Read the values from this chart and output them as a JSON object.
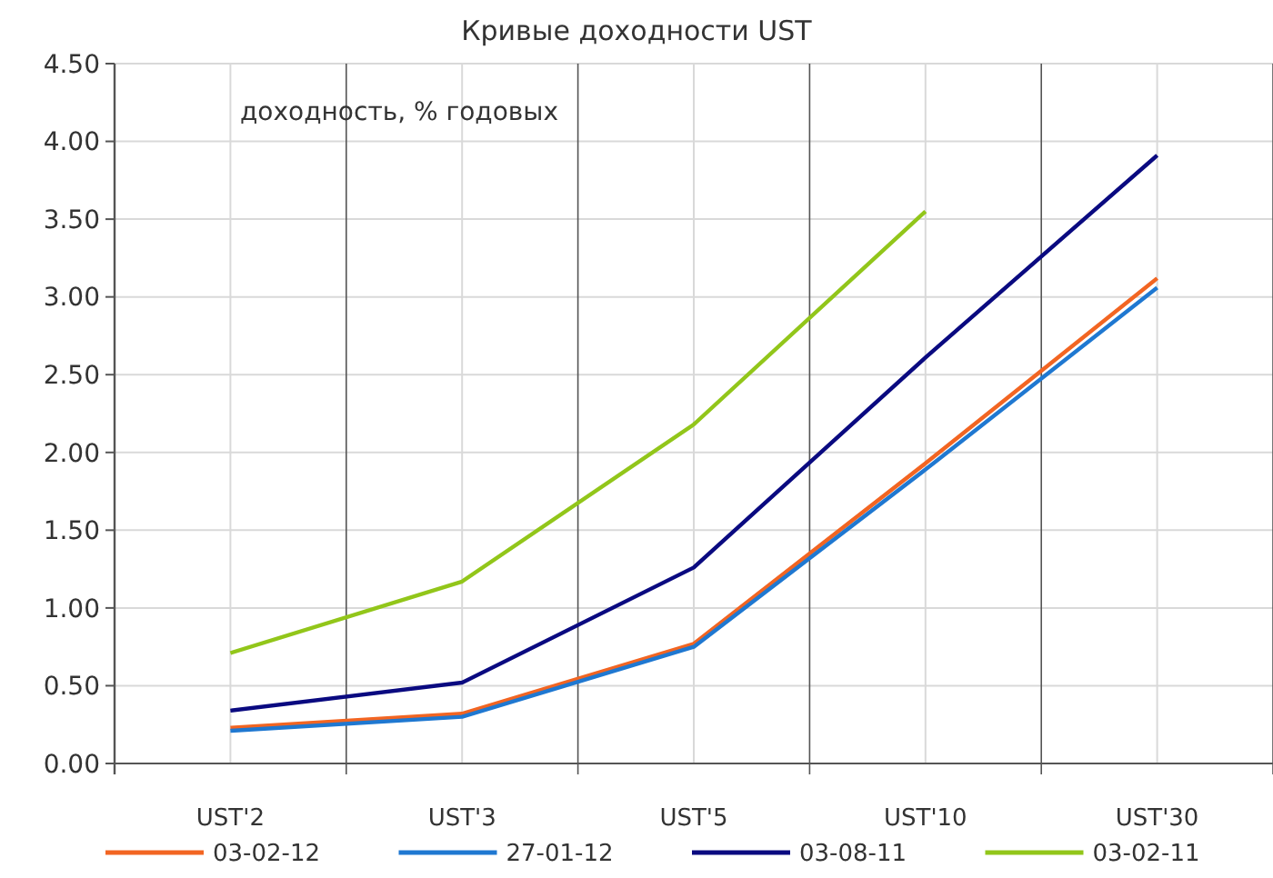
{
  "chart_data": {
    "type": "line",
    "title": "Кривые доходности UST",
    "ylabel": "доходность, % годовых",
    "categories": [
      "UST'2",
      "UST'3",
      "UST'5",
      "UST'10",
      "UST'30"
    ],
    "series": [
      {
        "name": "03-02-12",
        "color": "#f26522",
        "values": [
          0.23,
          0.32,
          0.77,
          1.93,
          3.12
        ]
      },
      {
        "name": "27-01-12",
        "color": "#1f78d1",
        "values": [
          0.21,
          0.3,
          0.75,
          1.89,
          3.06
        ]
      },
      {
        "name": "03-08-11",
        "color": "#0a0a80",
        "values": [
          0.34,
          0.52,
          1.26,
          2.61,
          3.91
        ]
      },
      {
        "name": "03-02-11",
        "color": "#92c61a",
        "values": [
          0.71,
          1.17,
          2.18,
          3.55,
          null
        ]
      }
    ],
    "ylim": [
      0,
      4.5
    ],
    "yticks": [
      {
        "value": 0,
        "label": "0.00"
      },
      {
        "value": 0.5,
        "label": "0.50"
      },
      {
        "value": 1,
        "label": "1.00"
      },
      {
        "value": 1.5,
        "label": "1.50"
      },
      {
        "value": 2,
        "label": "2.00"
      },
      {
        "value": 2.5,
        "label": "2.50"
      },
      {
        "value": 3,
        "label": "3.00"
      },
      {
        "value": 3.5,
        "label": "3.50"
      },
      {
        "value": 4,
        "label": "4.00"
      },
      {
        "value": 4.5,
        "label": "4.50"
      }
    ],
    "grid": true,
    "legend": "bottom",
    "marker": "none",
    "line_style": "solid"
  }
}
